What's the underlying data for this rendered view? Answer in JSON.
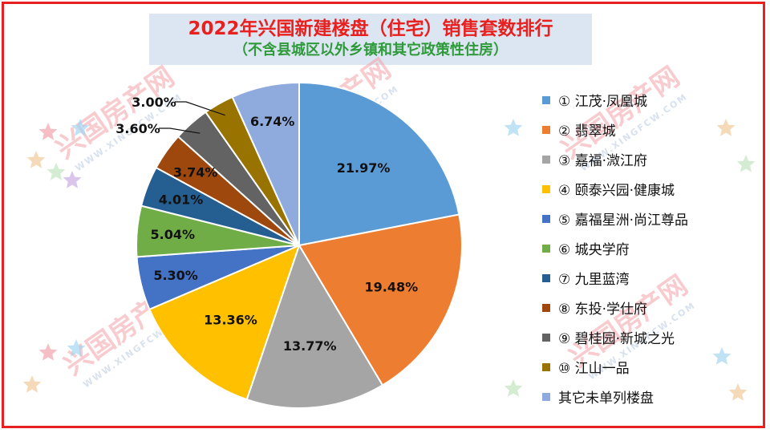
{
  "chart_data": {
    "type": "pie",
    "title": "2022年兴国新建楼盘（住宅）销售套数排行",
    "subtitle": "（不含县城区以外乡镇和其它政策性住房）",
    "slices": [
      {
        "label": "① 江茂·凤凰城",
        "value": 21.97,
        "value_label": "21.97%",
        "color": "#5b9bd5"
      },
      {
        "label": "② 翡翠城",
        "value": 19.48,
        "value_label": "19.48%",
        "color": "#ed7d31"
      },
      {
        "label": "③ 嘉福·溦江府",
        "value": 13.77,
        "value_label": "13.77%",
        "color": "#a5a5a5"
      },
      {
        "label": "④ 颐泰兴园·健康城",
        "value": 13.36,
        "value_label": "13.36%",
        "color": "#ffc000"
      },
      {
        "label": "⑤ 嘉福星洲·尚江尊品",
        "value": 5.3,
        "value_label": "5.30%",
        "color": "#4472c4"
      },
      {
        "label": "⑥  城央学府",
        "value": 5.04,
        "value_label": "5.04%",
        "color": "#70ad47"
      },
      {
        "label": "⑦ 九里蓝湾",
        "value": 4.01,
        "value_label": "4.01%",
        "color": "#255e91"
      },
      {
        "label": "⑧ 东投·学仕府",
        "value": 3.74,
        "value_label": "3.74%",
        "color": "#9e480e"
      },
      {
        "label": "⑨ 碧桂园·新城之光",
        "value": 3.6,
        "value_label": "3.60%",
        "color": "#636363"
      },
      {
        "label": "⑩ 江山一品",
        "value": 3.0,
        "value_label": "3.00%",
        "color": "#997300"
      },
      {
        "label": "其它未单列楼盘",
        "value": 6.74,
        "value_label": "6.74%",
        "color": "#8faadc"
      }
    ],
    "legend_position": "right",
    "start_angle_deg": 0,
    "direction": "clockwise"
  },
  "watermark": {
    "text": "兴国房产网",
    "url_text": "WWW.XINGFCW.COM"
  },
  "colors": {
    "border": "#e8201f",
    "title": "#e8201f",
    "subtitle": "#2e9a3a",
    "title_background": "#dce6f2"
  }
}
